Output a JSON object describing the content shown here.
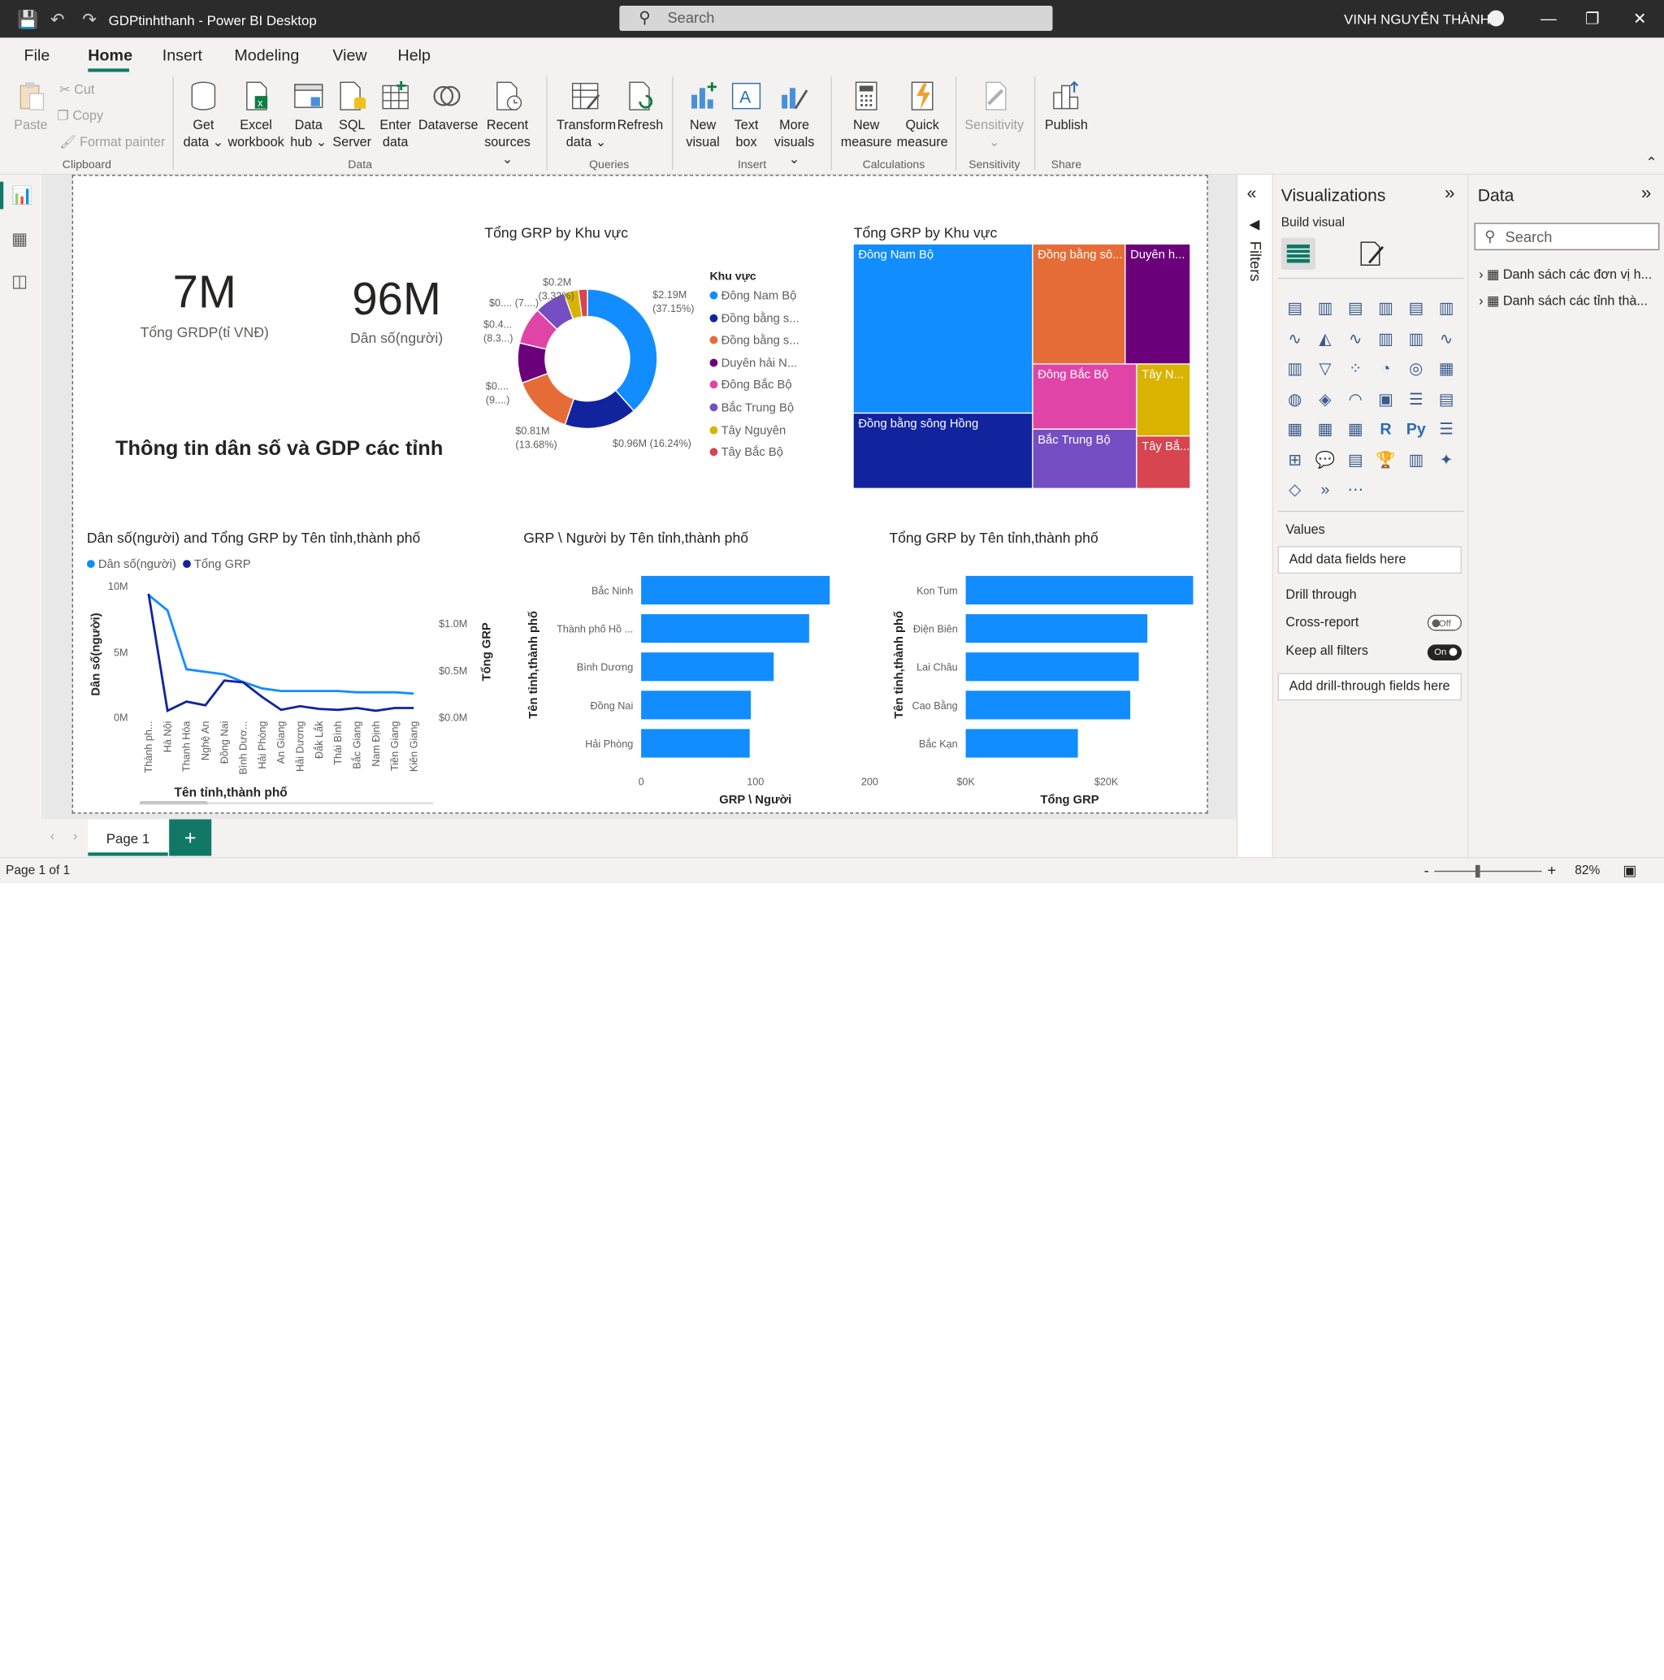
{
  "window": {
    "title": "GDPtinhthanh - Power BI Desktop",
    "search_placeholder": "Search",
    "user": "VINH NGUYỄN THÀNH"
  },
  "menu": [
    "File",
    "Home",
    "Insert",
    "Modeling",
    "View",
    "Help"
  ],
  "ribbon": {
    "clipboard": {
      "paste": "Paste",
      "cut": "Cut",
      "copy": "Copy",
      "format_painter": "Format painter",
      "group": "Clipboard"
    },
    "data": {
      "get_data": "Get data",
      "excel": "Excel workbook",
      "data_hub": "Data hub",
      "sql": "SQL Server",
      "enter_data": "Enter data",
      "dataverse": "Dataverse",
      "recent": "Recent sources",
      "group": "Data"
    },
    "queries": {
      "transform": "Transform data",
      "refresh": "Refresh",
      "group": "Queries"
    },
    "insert": {
      "new_visual": "New visual",
      "text_box": "Text box",
      "more_visuals": "More visuals",
      "group": "Insert"
    },
    "calculations": {
      "new_measure": "New measure",
      "quick_measure": "Quick measure",
      "group": "Calculations"
    },
    "sensitivity": {
      "label": "Sensitivity",
      "group": "Sensitivity"
    },
    "share": {
      "publish": "Publish",
      "group": "Share"
    }
  },
  "report": {
    "kpi1": {
      "value": "7M",
      "label": "Tổng GRDP(tỉ VNĐ)"
    },
    "kpi2": {
      "value": "96M",
      "label": "Dân số(người)"
    },
    "heading": "Thông tin dân số và GDP các tỉnh",
    "donut": {
      "title": "Tổng GRP by Khu vực",
      "legend_title": "Khu vực",
      "labels": [
        {
          "line1": "$2.19M",
          "line2": "(37.15%)"
        },
        {
          "line1": "$0.96M (16.24%)",
          "line2": ""
        },
        {
          "line1": "$0.81M",
          "line2": "(13.68%)"
        },
        {
          "line1": "$0....",
          "line2": "(9....)"
        },
        {
          "line1": "$0.4...",
          "line2": "(8.3...)"
        },
        {
          "line1": "$0.... (7....)",
          "line2": ""
        },
        {
          "line1": "$0.2M",
          "line2": "(3.32%)"
        }
      ]
    },
    "treemap": {
      "title": "Tổng GRP by Khu vực",
      "cells": [
        "Đông Nam Bộ",
        "Đồng bằng sô...",
        "Duyên h...",
        "Đồng bằng sông Hồng",
        "Đông Bắc Bộ",
        "Tây N...",
        "Bắc Trung Bộ",
        "Tây Bắ..."
      ]
    },
    "combo": {
      "title": "Dân số(người) and Tổng GRP by Tên tỉnh,thành phố",
      "legend": [
        "Dân số(người)",
        "Tổng GRP"
      ],
      "y_left_label": "Dân số(người)",
      "y_right_label": "Tổng GRP",
      "x_label": "Tên tỉnh,thành phố",
      "y_left_ticks": [
        "10M",
        "5M",
        "0M"
      ],
      "y_right_ticks": [
        "$1.0M",
        "$0.5M",
        "$0.0M"
      ]
    },
    "bar1": {
      "title": "GRP \\ Người by Tên tỉnh,thành phố",
      "y_label": "Tên tỉnh,thành phố",
      "x_label": "GRP \\ Người",
      "x_ticks": [
        "0",
        "100",
        "200"
      ]
    },
    "bar2": {
      "title": "Tổng GRP by Tên tỉnh,thành phố",
      "y_label": "Tên tỉnh,thành phố",
      "x_label": "Tổng GRP",
      "x_ticks": [
        "$0K",
        "$20K"
      ]
    }
  },
  "chart_data": [
    {
      "type": "pie",
      "title": "Tổng GRP by Khu vực",
      "legend_title": "Khu vực",
      "categories": [
        "Đông Nam Bộ",
        "Đồng bằng s...",
        "Đồng bằng s...",
        "Duyên hải N...",
        "Đông Bắc Bộ",
        "Bắc Trung Bộ",
        "Tây Nguyên",
        "Tây Bắc Bộ"
      ],
      "values": [
        37.15,
        16.24,
        13.68,
        9.0,
        8.3,
        7.0,
        3.32,
        2.0
      ],
      "colors": [
        "#118dff",
        "#12239e",
        "#e66c37",
        "#6b007b",
        "#e044a7",
        "#744ec2",
        "#d9b300",
        "#d64550"
      ]
    },
    {
      "type": "treemap",
      "title": "Tổng GRP by Khu vực",
      "categories": [
        "Đông Nam Bộ",
        "Đồng bằng sô...",
        "Duyên h...",
        "Đồng bằng sông Hồng",
        "Đông Bắc Bộ",
        "Tây N...",
        "Bắc Trung Bộ",
        "Tây Bắ..."
      ],
      "colors": [
        "#118dff",
        "#e66c37",
        "#6b007b",
        "#12239e",
        "#e044a7",
        "#d9b300",
        "#744ec2",
        "#d64550"
      ]
    },
    {
      "type": "line",
      "title": "Dân số(người) and Tổng GRP by Tên tỉnh,thành phố",
      "categories": [
        "Thành ph...",
        "Hà Nội",
        "Thanh Hóa",
        "Nghệ An",
        "Đồng Nai",
        "Bình Dươ...",
        "Hải Phòng",
        "An Giang",
        "Hải Dương",
        "Đắk Lắk",
        "Thái Bình",
        "Bắc Giang",
        "Nam Định",
        "Tiền Giang",
        "Kiên Giang"
      ],
      "series": [
        {
          "name": "Dân số(người)",
          "axis": "left",
          "color": "#118dff",
          "values": [
            9.4,
            8.2,
            3.6,
            3.4,
            3.2,
            2.6,
            2.1,
            1.9,
            1.9,
            1.9,
            1.9,
            1.8,
            1.8,
            1.8,
            1.7
          ]
        },
        {
          "name": "Tổng GRP",
          "axis": "right",
          "color": "#12239e",
          "values": [
            1.33,
            0.05,
            0.15,
            0.11,
            0.38,
            0.36,
            0.2,
            0.06,
            0.1,
            0.07,
            0.06,
            0.08,
            0.05,
            0.08,
            0.08
          ]
        }
      ],
      "ylim_left": [
        0,
        10
      ],
      "ylim_right": [
        0,
        1.4
      ],
      "xlabel": "Tên tỉnh,thành phố",
      "ylabel": "Dân số(người)",
      "ylabel_right": "Tổng GRP"
    },
    {
      "type": "bar",
      "title": "GRP \\ Người by Tên tỉnh,thành phố",
      "categories": [
        "Bắc Ninh",
        "Thành phố Hồ ...",
        "Bình Dương",
        "Đồng Nai",
        "Hải Phòng"
      ],
      "values": [
        165,
        147,
        116,
        96,
        95
      ],
      "xlim": [
        0,
        200
      ],
      "xlabel": "GRP \\ Người",
      "ylabel": "Tên tỉnh,thành phố"
    },
    {
      "type": "bar",
      "title": "Tổng GRP by Tên tỉnh,thành phố",
      "categories": [
        "Kon Tum",
        "Điện Biên",
        "Lai Châu",
        "Cao Bằng",
        "Bắc Kạn"
      ],
      "values": [
        21.4,
        17,
        16.2,
        15.4,
        10.5
      ],
      "xlim": [
        0,
        23
      ],
      "xlabel": "Tổng GRP",
      "ylabel": "Tên tỉnh,thành phố"
    }
  ],
  "filters": {
    "label": "Filters"
  },
  "visualizations": {
    "title": "Visualizations",
    "build_visual": "Build visual",
    "values_label": "Values",
    "add_data_fields": "Add data fields here",
    "drill_through": "Drill through",
    "cross_report": "Cross-report",
    "cross_report_state": "Off",
    "keep_all_filters": "Keep all filters",
    "keep_all_filters_state": "On",
    "add_drill_fields": "Add drill-through fields here"
  },
  "data_pane": {
    "title": "Data",
    "search_placeholder": "Search",
    "tables": [
      "Danh sách các đơn vị h...",
      "Danh sách các tỉnh thà..."
    ]
  },
  "page_tabs": {
    "tab1": "Page 1",
    "add": "+"
  },
  "status": {
    "page_info": "Page 1 of 1",
    "zoom": "82%"
  }
}
